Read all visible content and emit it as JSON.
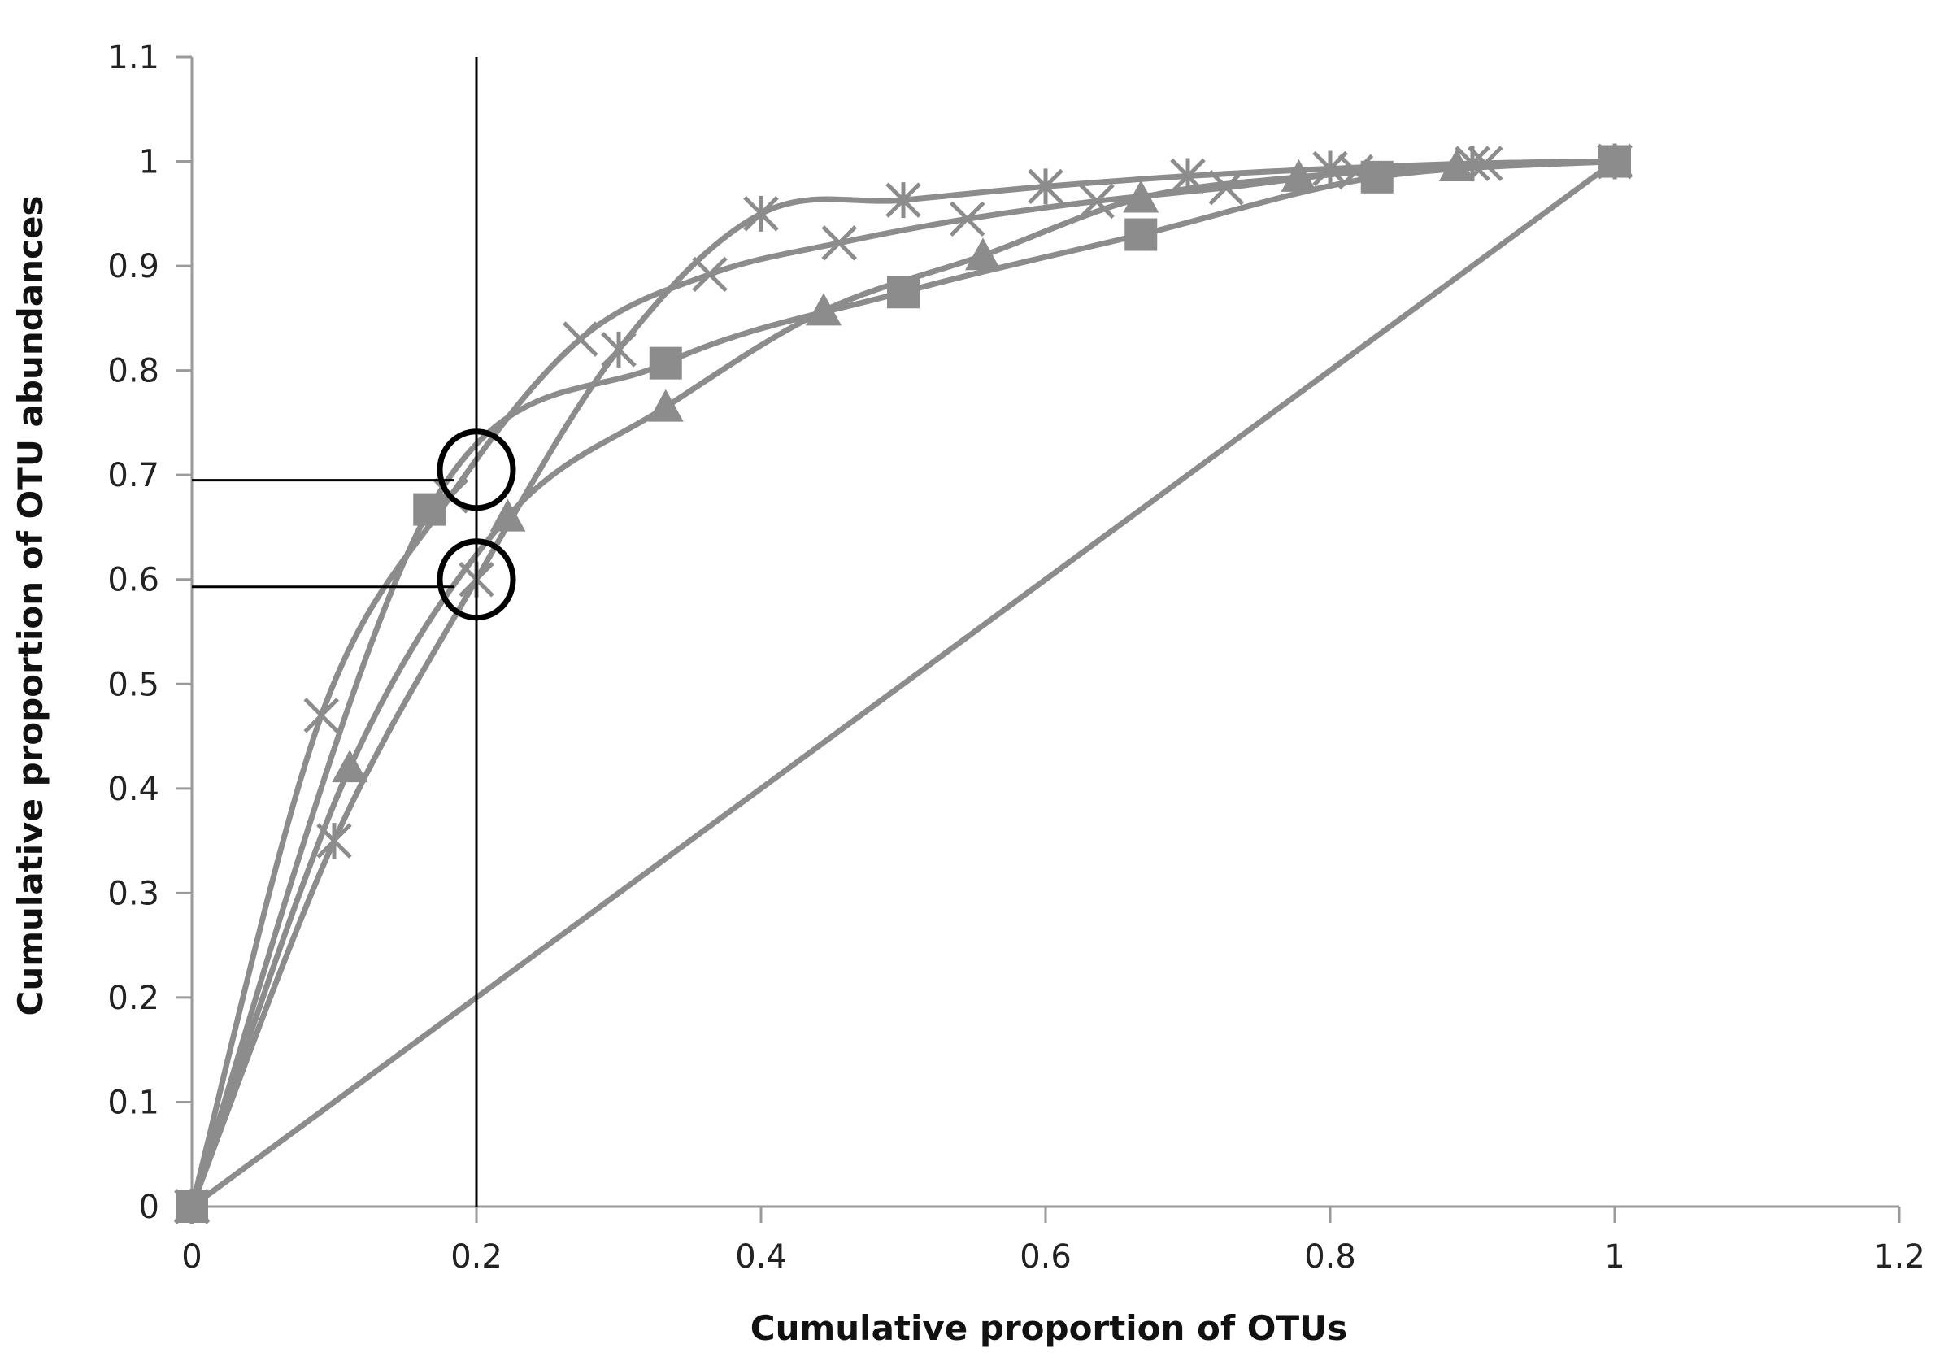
{
  "chart_data": {
    "type": "line",
    "title": "",
    "xlabel": "Cumulative proportion of OTUs",
    "ylabel": "Cumulative proportion of OTU abundances",
    "xlim": [
      0,
      1.2
    ],
    "ylim": [
      0,
      1.1
    ],
    "x_ticks": [
      "0",
      "0.2",
      "0.4",
      "0.6",
      "0.8",
      "1",
      "1.2"
    ],
    "y_ticks": [
      "0",
      "0.1",
      "0.2",
      "0.3",
      "0.4",
      "0.5",
      "0.6",
      "0.7",
      "0.8",
      "0.9",
      "1",
      "1.1"
    ],
    "grid": false,
    "legend": "none",
    "series_color": "#8c8c8c",
    "annotation_color": "#000000",
    "series": [
      {
        "marker": "square",
        "points": [
          [
            0,
            0
          ],
          [
            0.167,
            0.667
          ],
          [
            0.333,
            0.807
          ],
          [
            0.5,
            0.875
          ],
          [
            0.667,
            0.93
          ],
          [
            0.833,
            0.985
          ],
          [
            1.0,
            1.0
          ]
        ]
      },
      {
        "marker": "triangle",
        "points": [
          [
            0,
            0
          ],
          [
            0.111,
            0.42
          ],
          [
            0.222,
            0.66
          ],
          [
            0.333,
            0.765
          ],
          [
            0.444,
            0.857
          ],
          [
            0.556,
            0.91
          ],
          [
            0.667,
            0.965
          ],
          [
            0.778,
            0.985
          ],
          [
            0.889,
            0.995
          ],
          [
            1.0,
            1.0
          ]
        ]
      },
      {
        "marker": "x",
        "points": [
          [
            0,
            0
          ],
          [
            0.091,
            0.47
          ],
          [
            0.182,
            0.68
          ],
          [
            0.273,
            0.83
          ],
          [
            0.364,
            0.892
          ],
          [
            0.455,
            0.922
          ],
          [
            0.545,
            0.945
          ],
          [
            0.636,
            0.962
          ],
          [
            0.727,
            0.975
          ],
          [
            0.818,
            0.99
          ],
          [
            0.909,
            0.998
          ],
          [
            1.0,
            1.0
          ]
        ]
      },
      {
        "marker": "star",
        "points": [
          [
            0,
            0
          ],
          [
            0.1,
            0.35
          ],
          [
            0.2,
            0.6
          ],
          [
            0.3,
            0.82
          ],
          [
            0.4,
            0.95
          ],
          [
            0.5,
            0.963
          ],
          [
            0.6,
            0.976
          ],
          [
            0.7,
            0.986
          ],
          [
            0.8,
            0.993
          ],
          [
            0.9,
            0.998
          ],
          [
            1.0,
            1.0
          ]
        ]
      },
      {
        "marker": "none",
        "points": [
          [
            0,
            0
          ],
          [
            1.0,
            1.0
          ]
        ]
      }
    ],
    "annotations": {
      "vertical_line_x": 0.2,
      "horizontal_lines": [
        {
          "y": 0.695,
          "x_end": 0.2
        },
        {
          "y": 0.593,
          "x_end": 0.2
        }
      ],
      "circles": [
        {
          "x": 0.2,
          "y": 0.705
        },
        {
          "x": 0.2,
          "y": 0.6
        }
      ]
    }
  }
}
